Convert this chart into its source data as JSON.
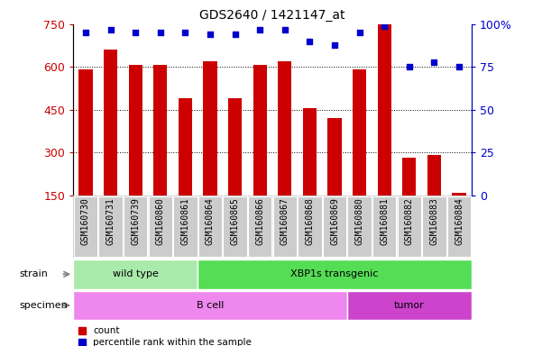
{
  "title": "GDS2640 / 1421147_at",
  "samples": [
    "GSM160730",
    "GSM160731",
    "GSM160739",
    "GSM160860",
    "GSM160861",
    "GSM160864",
    "GSM160865",
    "GSM160866",
    "GSM160867",
    "GSM160868",
    "GSM160869",
    "GSM160880",
    "GSM160881",
    "GSM160882",
    "GSM160883",
    "GSM160884"
  ],
  "counts": [
    592,
    660,
    608,
    608,
    492,
    620,
    490,
    608,
    620,
    456,
    420,
    592,
    750,
    284,
    292,
    160
  ],
  "percentiles": [
    95,
    97,
    95,
    95,
    95,
    94,
    94,
    97,
    97,
    90,
    88,
    95,
    99,
    75,
    78,
    75
  ],
  "ylim_left": [
    150,
    750
  ],
  "ylim_right": [
    0,
    100
  ],
  "yticks_left": [
    150,
    300,
    450,
    600,
    750
  ],
  "yticks_right": [
    0,
    25,
    50,
    75,
    100
  ],
  "ytick_labels_right": [
    "0",
    "25",
    "50",
    "75",
    "100%"
  ],
  "bar_color": "#cc0000",
  "dot_color": "#0000cc",
  "bar_width": 0.55,
  "strain_groups": [
    {
      "label": "wild type",
      "start": 0,
      "end": 5,
      "color": "#aaeaaa"
    },
    {
      "label": "XBP1s transgenic",
      "start": 5,
      "end": 16,
      "color": "#55dd55"
    }
  ],
  "specimen_groups": [
    {
      "label": "B cell",
      "start": 0,
      "end": 11,
      "color": "#ee88ee"
    },
    {
      "label": "tumor",
      "start": 11,
      "end": 16,
      "color": "#cc44cc"
    }
  ],
  "left_axis_color": "#cc0000",
  "right_axis_color": "#0000cc",
  "title_fontsize": 10,
  "tick_fontsize": 7,
  "label_fontsize": 8,
  "grid_ticks": [
    300,
    450,
    600
  ],
  "xticklabel_bg_color": "#cccccc"
}
